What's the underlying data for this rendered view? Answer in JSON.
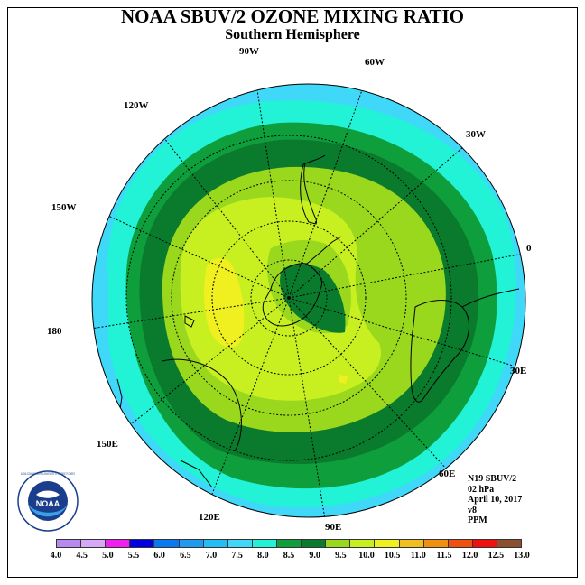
{
  "title": "NOAA SBUV/2 OZONE MIXING RATIO",
  "subtitle": "Southern Hemisphere",
  "longitude_labels": [
    "90W",
    "60W",
    "30W",
    "0",
    "30E",
    "60E",
    "90E",
    "120E",
    "150E",
    "180",
    "150W",
    "120W"
  ],
  "info": {
    "satellite": "N19 SBUV/2",
    "level": "02 hPa",
    "date": "April 10, 2017",
    "version": "v8",
    "units": "PPM"
  },
  "logo": {
    "text": "NOAA",
    "ring_text": "NATIONAL OCEANIC AND ATMOSPHERIC ADMINISTRATION · U.S. DEPARTMENT OF COMMERCE"
  },
  "colorbar": {
    "ticks": [
      "4.0",
      "4.5",
      "5.0",
      "5.5",
      "6.0",
      "6.5",
      "7.0",
      "7.5",
      "8.0",
      "8.5",
      "9.0",
      "9.5",
      "10.0",
      "10.5",
      "11.0",
      "11.5",
      "12.0",
      "12.5",
      "13.0"
    ],
    "colors": [
      "#b88af0",
      "#d8a8f8",
      "#f020f0",
      "#0000e0",
      "#0a78f0",
      "#1e9af0",
      "#22bef6",
      "#3fd8f8",
      "#22f2d6",
      "#0e9e3c",
      "#0a7a2c",
      "#9ad81e",
      "#c8f020",
      "#f0f020",
      "#f0c020",
      "#f09010",
      "#f05010",
      "#f01010",
      "#8a5030"
    ]
  }
}
